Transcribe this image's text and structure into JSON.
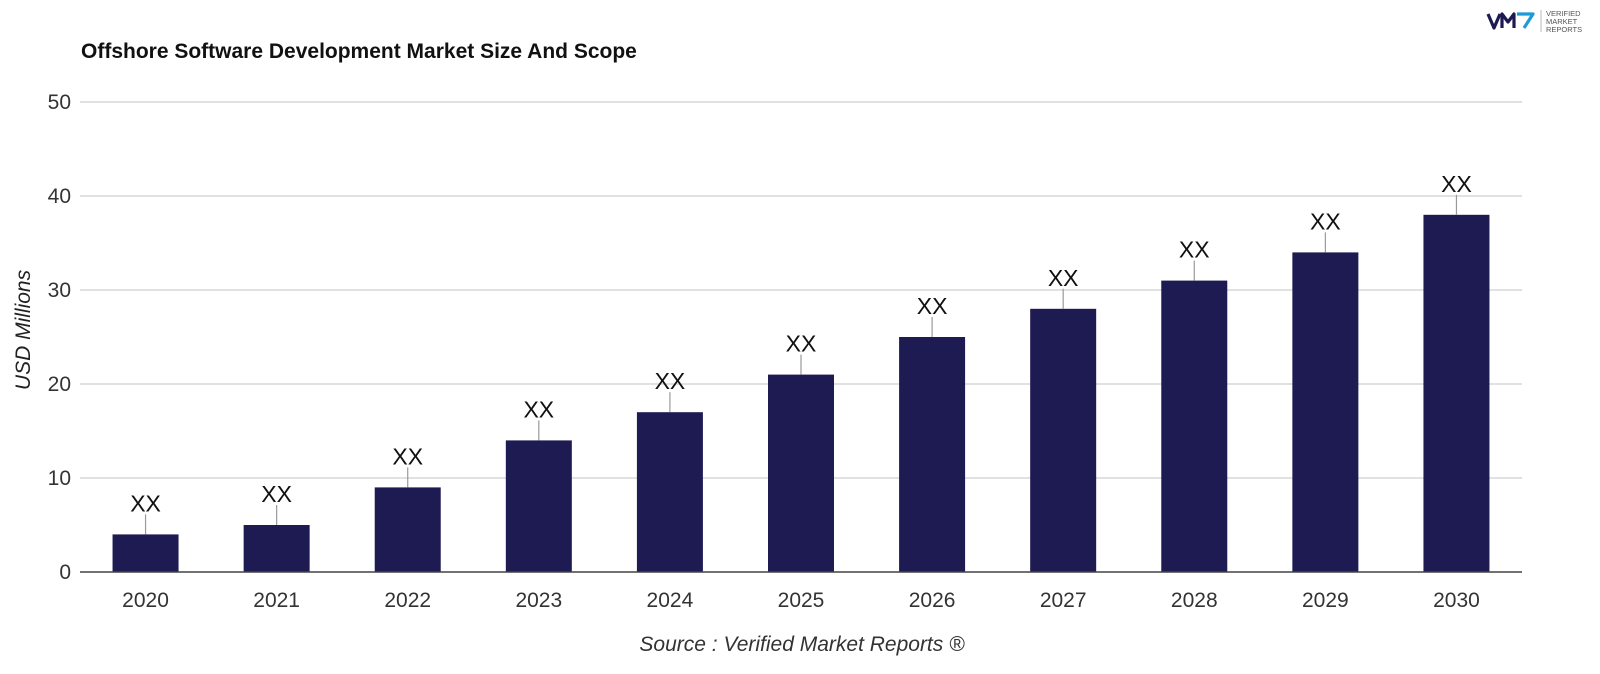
{
  "colors": {
    "bar": "#1e1a52",
    "logo_mark": "#1e1a52",
    "logo_accent": "#1b9bd7"
  },
  "logo": {
    "icon": "vmr-logo-icon",
    "mark": "VMR",
    "lines": [
      "VERIFIED",
      "MARKET",
      "REPORTS"
    ]
  },
  "chart_data": {
    "type": "bar",
    "title": "Offshore Software Development Market Size And Scope",
    "xlabel": "",
    "ylabel": "USD Millions",
    "source": "Source : Verified Market Reports ®",
    "categories": [
      "2020",
      "2021",
      "2022",
      "2023",
      "2024",
      "2025",
      "2026",
      "2027",
      "2028",
      "2029",
      "2030"
    ],
    "values": [
      4,
      5,
      9,
      14,
      17,
      21,
      25,
      28,
      31,
      34,
      38
    ],
    "data_labels": [
      "XX",
      "XX",
      "XX",
      "XX",
      "XX",
      "XX",
      "XX",
      "XX",
      "XX",
      "XX",
      "XX"
    ],
    "yticks": [
      0,
      10,
      20,
      30,
      40,
      50
    ],
    "ylim": [
      0,
      50
    ],
    "grid": true,
    "legend": "none"
  }
}
